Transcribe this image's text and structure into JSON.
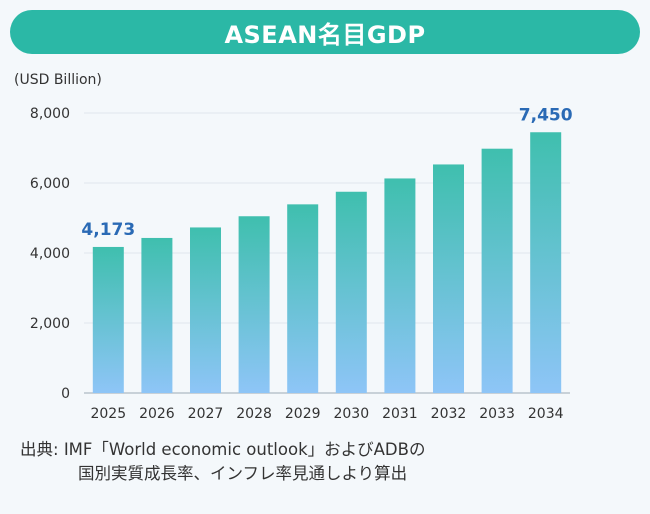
{
  "title": "ASEAN名目GDP",
  "unit": "(USD Billion)",
  "source": {
    "prefix": "出典:",
    "line1": "IMF「World economic outlook」およびADBの",
    "line2": "国別実質成長率、インフレ率見通しより算出"
  },
  "colors": {
    "title_bg": "#2bb8a6",
    "bar_top": "#3fbfae",
    "bar_bottom": "#8ec5f7",
    "label": "#2a6ab5"
  },
  "chart_data": {
    "type": "bar",
    "title": "ASEAN名目GDP",
    "ylabel": "(USD Billion)",
    "categories": [
      "2025",
      "2026",
      "2027",
      "2028",
      "2029",
      "2030",
      "2031",
      "2032",
      "2033",
      "2034"
    ],
    "values": [
      4173,
      4430,
      4730,
      5050,
      5390,
      5750,
      6130,
      6530,
      6980,
      7450
    ],
    "ylim": [
      0,
      8000
    ],
    "yticks": [
      "0",
      "2,000",
      "4,000",
      "6,000",
      "8,000"
    ],
    "data_labels": [
      {
        "index": 0,
        "text": "4,173"
      },
      {
        "index": 9,
        "text": "7,450"
      }
    ],
    "grid": true
  }
}
